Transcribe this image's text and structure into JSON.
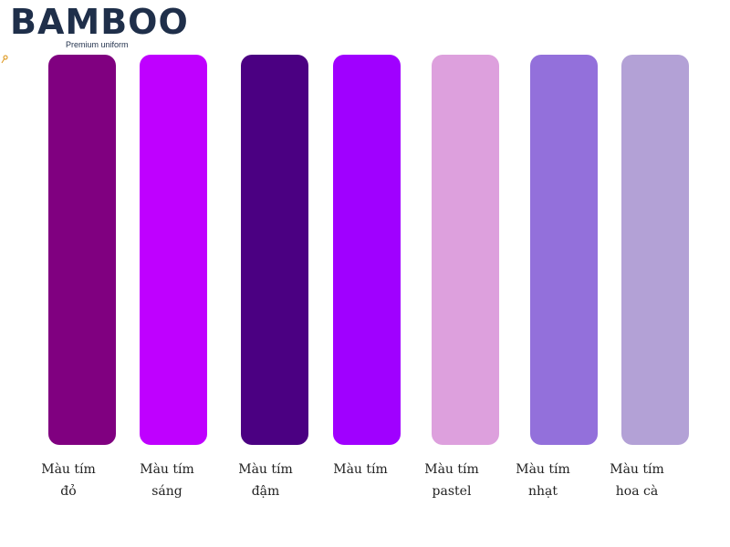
{
  "logo": {
    "name": "BAMBOO",
    "tagline": "Premium uniform"
  },
  "swatches": [
    {
      "label": [
        "Màu tím",
        "đỏ"
      ],
      "color": "#800080"
    },
    {
      "label": [
        "Màu tím",
        "sáng"
      ],
      "color": "#bf00ff"
    },
    {
      "label": [
        "Màu tím",
        "đậm"
      ],
      "color": "#4b0082"
    },
    {
      "label": [
        "Màu tím"
      ],
      "color": "#a000ff"
    },
    {
      "label": [
        "Màu tím",
        "pastel"
      ],
      "color": "#dda0dd"
    },
    {
      "label": [
        "Màu tím",
        "nhạt"
      ],
      "color": "#9370db"
    },
    {
      "label": [
        "Màu tím",
        "hoa cà"
      ],
      "color": "#b3a1d6"
    }
  ]
}
